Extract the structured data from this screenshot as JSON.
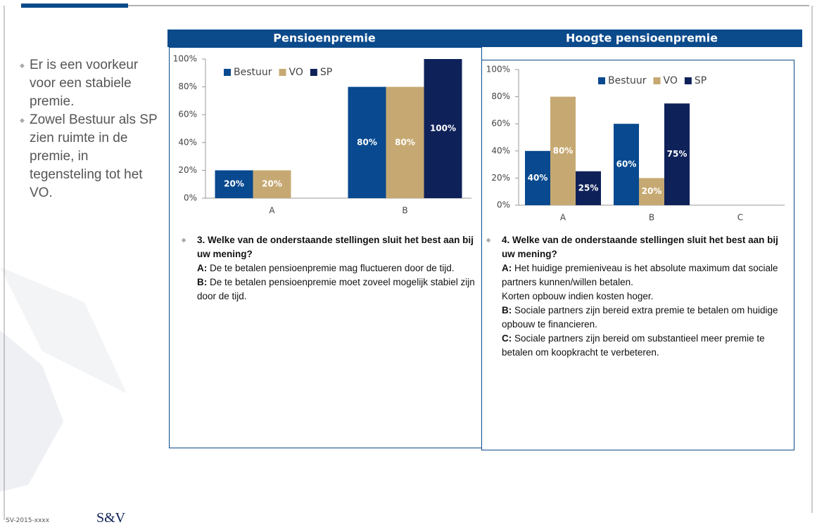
{
  "chart_data": [
    {
      "type": "bar",
      "title": "Pensioenpremie",
      "categories": [
        "A",
        "B"
      ],
      "series": [
        {
          "name": "Bestuur",
          "color": "#08498f",
          "values": [
            20,
            80
          ],
          "value_labels": [
            "20%",
            "80%"
          ]
        },
        {
          "name": "VO",
          "color": "#c6a972",
          "values": [
            20,
            80
          ],
          "value_labels": [
            "20%",
            "80%"
          ]
        },
        {
          "name": "SP",
          "color": "#0e2159",
          "values": [
            null,
            100
          ],
          "value_labels": [
            null,
            "100%"
          ]
        }
      ],
      "ylim": [
        0,
        100
      ],
      "yticks": [
        {
          "value": 0,
          "label": "0%"
        },
        {
          "value": 20,
          "label": "20%"
        },
        {
          "value": 40,
          "label": "40%"
        },
        {
          "value": 60,
          "label": "60%"
        },
        {
          "value": 80,
          "label": "80%"
        },
        {
          "value": 100,
          "label": "100%"
        }
      ],
      "legend": "top-left"
    },
    {
      "type": "bar",
      "title": "Hoogte pensioenpremie",
      "categories": [
        "A",
        "B",
        "C"
      ],
      "series": [
        {
          "name": "Bestuur",
          "color": "#08498f",
          "values": [
            40,
            60,
            null
          ],
          "value_labels": [
            "40%",
            "60%",
            null
          ]
        },
        {
          "name": "VO",
          "color": "#c6a972",
          "values": [
            80,
            20,
            null
          ],
          "value_labels": [
            "80%",
            "20%",
            null
          ]
        },
        {
          "name": "SP",
          "color": "#0e2159",
          "values": [
            25,
            75,
            null
          ],
          "value_labels": [
            "25%",
            "75%",
            null
          ]
        }
      ],
      "ylim": [
        0,
        100
      ],
      "yticks": [
        {
          "value": 0,
          "label": "0%"
        },
        {
          "value": 20,
          "label": "20%"
        },
        {
          "value": 40,
          "label": "40%"
        },
        {
          "value": 60,
          "label": "60%"
        },
        {
          "value": 80,
          "label": "80%"
        },
        {
          "value": 100,
          "label": "100%"
        }
      ],
      "legend": "top-right"
    }
  ],
  "bullets": [
    "Er is een voorkeur voor een stabiele premie.",
    "Zowel Bestuur als SP zien ruimte in de premie, in tegensteling tot het VO."
  ],
  "questions": [
    {
      "question": "3. Welke van de onderstaande stellingen sluit het best aan bij uw mening?",
      "options": [
        {
          "label": "A:",
          "lines": [
            "De te betalen pensioenpremie mag fluctueren door de tijd."
          ]
        },
        {
          "label": "B:",
          "lines": [
            "De te betalen pensioenpremie moet zoveel mogelijk stabiel zijn door de tijd."
          ]
        }
      ]
    },
    {
      "question": "4. Welke van de onderstaande stellingen sluit het best aan bij uw mening?",
      "options": [
        {
          "label": "A:",
          "lines": [
            "Het huidige premieniveau is het absolute maximum dat sociale partners kunnen/willen betalen.",
            "Korten opbouw indien kosten hoger."
          ]
        },
        {
          "label": "B:",
          "lines": [
            "Sociale partners zijn bereid extra premie te betalen om huidige opbouw te financieren."
          ]
        },
        {
          "label": "C:",
          "lines": [
            "Sociale partners zijn bereid om substantieel meer premie te betalen om koopkracht te verbeteren."
          ]
        }
      ]
    }
  ],
  "footer": {
    "code": "SV-2015-xxxx",
    "logo": "S&V"
  }
}
